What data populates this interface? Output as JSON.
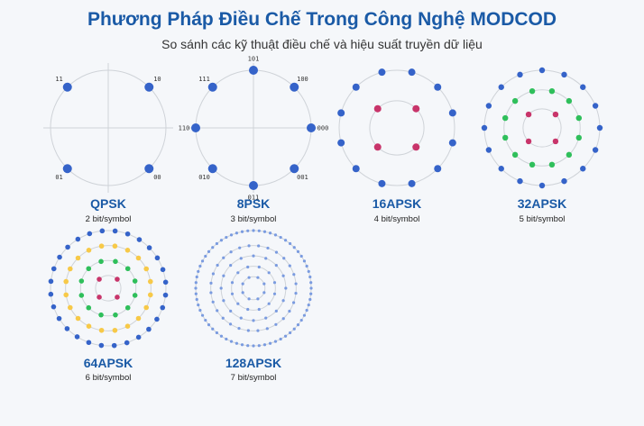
{
  "title": "Phương Pháp Điều Chế Trong Công Nghệ MODCOD",
  "subtitle": "So sánh các kỹ thuật điều chế và hiệu suất truyền dữ liệu",
  "colors": {
    "blue": "#3563c9",
    "red": "#c8346a",
    "green": "#2fbf5b",
    "yellow": "#f7c948",
    "light_blue": "#7a9be0",
    "ring": "#cfd3d8",
    "axis": "#cfd3d8",
    "title": "#1a5aa6"
  },
  "modulations": [
    {
      "id": "qpsk",
      "name": "QPSK",
      "rate": "2 bit/symbol",
      "type": "psk",
      "points": 4,
      "phase_deg": 45,
      "labels": [
        "11",
        "10",
        "01",
        "00"
      ]
    },
    {
      "id": "8psk",
      "name": "8PSK",
      "rate": "3 bit/symbol",
      "type": "psk",
      "points": 8,
      "phase_deg": 0,
      "labels": [
        "000",
        "001",
        "011",
        "010",
        "110",
        "111",
        "101",
        "100"
      ]
    },
    {
      "id": "16apsk",
      "name": "16APSK",
      "rate": "4 bit/symbol",
      "type": "apsk",
      "rings": [
        {
          "count": 4,
          "radius_ratio": 0.47,
          "color": "red",
          "phase_deg": 45
        },
        {
          "count": 12,
          "radius_ratio": 1.0,
          "color": "blue",
          "phase_deg": 15
        }
      ]
    },
    {
      "id": "32apsk",
      "name": "32APSK",
      "rate": "5 bit/symbol",
      "type": "apsk",
      "rings": [
        {
          "count": 4,
          "radius_ratio": 0.33,
          "color": "red",
          "phase_deg": 45
        },
        {
          "count": 12,
          "radius_ratio": 0.66,
          "color": "green",
          "phase_deg": 15
        },
        {
          "count": 16,
          "radius_ratio": 1.0,
          "color": "blue",
          "phase_deg": 0
        }
      ]
    },
    {
      "id": "64apsk",
      "name": "64APSK",
      "rate": "6 bit/symbol",
      "type": "apsk",
      "rings": [
        {
          "count": 4,
          "radius_ratio": 0.22,
          "color": "red",
          "phase_deg": 45
        },
        {
          "count": 12,
          "radius_ratio": 0.48,
          "color": "green",
          "phase_deg": 15
        },
        {
          "count": 20,
          "radius_ratio": 0.74,
          "color": "yellow",
          "phase_deg": 9
        },
        {
          "count": 28,
          "radius_ratio": 1.0,
          "color": "blue",
          "phase_deg": 6
        }
      ]
    },
    {
      "id": "128apsk",
      "name": "128APSK",
      "rate": "7 bit/symbol",
      "type": "apsk",
      "rings": [
        {
          "count": 8,
          "radius_ratio": 0.2,
          "color": "light_blue",
          "phase_deg": 22.5
        },
        {
          "count": 12,
          "radius_ratio": 0.38,
          "color": "light_blue",
          "phase_deg": 15
        },
        {
          "count": 16,
          "radius_ratio": 0.56,
          "color": "light_blue",
          "phase_deg": 0
        },
        {
          "count": 28,
          "radius_ratio": 0.74,
          "color": "light_blue",
          "phase_deg": 6
        },
        {
          "count": 64,
          "radius_ratio": 1.0,
          "color": "light_blue",
          "phase_deg": 0
        }
      ]
    }
  ]
}
